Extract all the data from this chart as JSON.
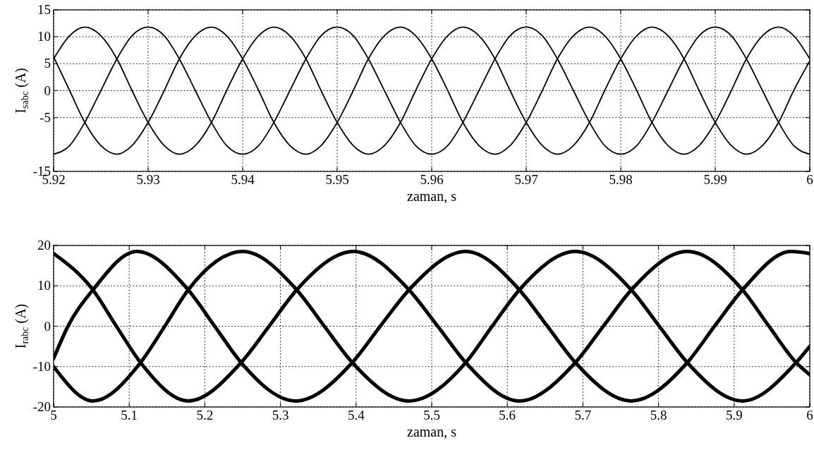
{
  "chart_data": [
    {
      "type": "line",
      "xlabel": "zaman, s",
      "ylabel": "I$_{sabc}$ (A)",
      "grid": true,
      "xlim": [
        5.92,
        6
      ],
      "ylim": [
        -15,
        15
      ],
      "xticks": [
        5.92,
        5.93,
        5.94,
        5.95,
        5.96,
        5.97,
        5.98,
        5.99,
        6
      ],
      "yticks": [
        -15,
        -5,
        0,
        5,
        10,
        15
      ],
      "x": [
        5.92,
        5.9217,
        5.9233,
        5.925,
        5.9267,
        5.9283,
        5.93,
        5.9317,
        5.9333,
        5.935,
        5.9367,
        5.9383,
        5.94,
        5.9417,
        5.9433,
        5.945,
        5.9467,
        5.9483,
        5.95,
        5.9517,
        5.9533,
        5.955,
        5.9567,
        5.9583,
        5.96,
        5.9617,
        5.9633,
        5.965,
        5.9667,
        5.9683,
        5.97,
        5.9717,
        5.9733,
        5.975,
        5.9767,
        5.9783,
        5.98,
        5.9817,
        5.9833,
        5.985,
        5.9867,
        5.9883,
        5.99,
        5.9917,
        5.9933,
        5.995,
        5.9967,
        5.9983,
        6
      ],
      "series": [
        {
          "color": "#000000",
          "values": [
            5.9,
            10.2,
            11.8,
            10.2,
            5.9,
            0,
            -5.9,
            -10.2,
            -11.8,
            -10.2,
            -5.9,
            0,
            5.9,
            10.2,
            11.8,
            10.2,
            5.9,
            0,
            -5.9,
            -10.2,
            -11.8,
            -10.2,
            -5.9,
            0,
            5.9,
            10.2,
            11.8,
            10.2,
            5.9,
            0,
            -5.9,
            -10.2,
            -11.8,
            -10.2,
            -5.9,
            0,
            5.9,
            10.2,
            11.8,
            10.2,
            5.9,
            0,
            -5.9,
            -10.2,
            -11.8,
            -10.2,
            -5.9,
            0,
            5.5
          ]
        },
        {
          "color": "#000000",
          "values": [
            -11.8,
            -10.2,
            -5.9,
            0,
            5.9,
            10.2,
            11.8,
            10.2,
            5.9,
            0,
            -5.9,
            -10.2,
            -11.8,
            -10.2,
            -5.9,
            0,
            5.9,
            10.2,
            11.8,
            10.2,
            5.9,
            0,
            -5.9,
            -10.2,
            -11.8,
            -10.2,
            -5.9,
            0,
            5.9,
            10.2,
            11.8,
            10.2,
            5.9,
            0,
            -5.9,
            -10.2,
            -11.8,
            -10.2,
            -5.9,
            0,
            5.9,
            10.2,
            11.8,
            10.2,
            5.9,
            0,
            -5.9,
            -10.2,
            -11.8
          ]
        },
        {
          "color": "#000000",
          "values": [
            6.3,
            0,
            -5.9,
            -10.2,
            -11.8,
            -10.2,
            -5.9,
            0,
            5.9,
            10.2,
            11.8,
            10.2,
            5.9,
            0,
            -5.9,
            -10.2,
            -11.8,
            -10.2,
            -5.9,
            0,
            5.9,
            10.2,
            11.8,
            10.2,
            5.9,
            0,
            -5.9,
            -10.2,
            -11.8,
            -10.2,
            -5.9,
            0,
            5.9,
            10.2,
            11.8,
            10.2,
            5.9,
            0,
            -5.9,
            -10.2,
            -11.8,
            -10.2,
            -5.9,
            0,
            5.9,
            10.2,
            11.8,
            10.2,
            5.9
          ]
        }
      ]
    },
    {
      "type": "line",
      "xlabel": "zaman, s",
      "ylabel": "I$_{rabc}$ (A)",
      "grid": true,
      "xlim": [
        5,
        6
      ],
      "ylim": [
        -20,
        20
      ],
      "xticks": [
        5,
        5.1,
        5.2,
        5.3,
        5.4,
        5.5,
        5.6,
        5.7,
        5.8,
        5.9,
        6
      ],
      "yticks": [
        -20,
        -10,
        0,
        10,
        20
      ],
      "series": [
        {
          "color": "#000000",
          "x": [
            5,
            5.019,
            5.052,
            5.11,
            5.178,
            5.213,
            5.248,
            5.32,
            5.395,
            5.432,
            5.47,
            5.545,
            5.616,
            5.653,
            5.69,
            5.764,
            5.838,
            5.874,
            5.911,
            5.975,
            6
          ],
          "values": [
            -8,
            0,
            9,
            18.5,
            9,
            0,
            -9,
            -18.5,
            -9,
            0,
            9,
            18.5,
            9,
            0,
            -9,
            -18.5,
            -9,
            0,
            9,
            18.5,
            18
          ]
        },
        {
          "color": "#000000",
          "x": [
            5,
            5.052,
            5.083,
            5.115,
            5.178,
            5.248,
            5.285,
            5.3215,
            5.397,
            5.47,
            5.508,
            5.545,
            5.616,
            5.69,
            5.727,
            5.764,
            5.838,
            5.911,
            5.946,
            5.982,
            6
          ],
          "values": [
            18,
            9,
            0,
            -9,
            -18.5,
            -9,
            0,
            9,
            18.5,
            9,
            0,
            -9,
            -18.5,
            -9,
            0,
            9,
            18.5,
            9,
            0,
            -9,
            -12
          ]
        },
        {
          "color": "#000000",
          "x": [
            5,
            5.052,
            5.115,
            5.147,
            5.178,
            5.25,
            5.3215,
            5.358,
            5.395,
            5.47,
            5.545,
            5.58,
            5.616,
            5.69,
            5.764,
            5.801,
            5.838,
            5.911,
            5.982,
            6
          ],
          "values": [
            -10,
            -18.5,
            -9,
            0,
            9,
            18.5,
            9,
            0,
            -9,
            -18.5,
            -9,
            0,
            9,
            18.5,
            9,
            0,
            -9,
            -18.5,
            -9,
            -5
          ]
        }
      ]
    }
  ]
}
